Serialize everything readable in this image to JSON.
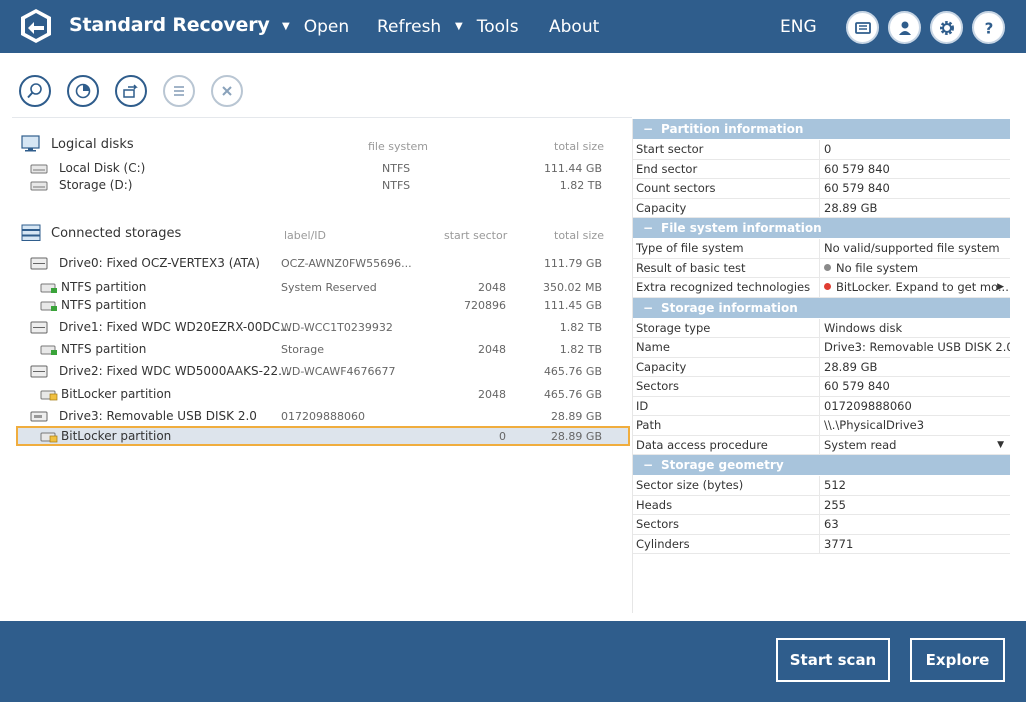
{
  "header": {
    "title": "Standard Recovery",
    "menu": [
      {
        "label": "Open",
        "has_arrow": true
      },
      {
        "label": "Refresh",
        "has_arrow": false
      },
      {
        "label": "Tools",
        "has_arrow": true
      },
      {
        "label": "About",
        "has_arrow": false
      }
    ],
    "language": "ENG",
    "icons": [
      "log-icon",
      "account-icon",
      "settings-gear-icon",
      "help-icon"
    ]
  },
  "toolbar": {
    "icons": [
      "scan-icon",
      "analyze-icon",
      "transfer-icon",
      "list-icon",
      "close-icon"
    ]
  },
  "logical_disks": {
    "title": "Logical disks",
    "col_fs": "file system",
    "col_size": "total size",
    "items": [
      {
        "name": "Local Disk (C:)",
        "fs": "NTFS",
        "size": "111.44 GB"
      },
      {
        "name": "Storage (D:)",
        "fs": "NTFS",
        "size": "1.82 TB"
      }
    ]
  },
  "connected_storages": {
    "title": "Connected storages",
    "col_label": "label/ID",
    "col_start": "start sector",
    "col_size": "total size",
    "items": [
      {
        "name": "Drive0: Fixed OCZ-VERTEX3 (ATA)",
        "label": "OCZ-AWNZ0FW55696...",
        "start": "",
        "size": "111.79 GB",
        "kind": "drive"
      },
      {
        "name": "NTFS partition",
        "label": "System Reserved",
        "start": "2048",
        "size": "350.02 MB",
        "kind": "ntfs"
      },
      {
        "name": "NTFS partition",
        "label": "",
        "start": "720896",
        "size": "111.45 GB",
        "kind": "ntfs"
      },
      {
        "name": "Drive1: Fixed WDC WD20EZRX-00DC...",
        "label": "WD-WCC1T0239932",
        "start": "",
        "size": "1.82 TB",
        "kind": "drive"
      },
      {
        "name": "NTFS partition",
        "label": "Storage",
        "start": "2048",
        "size": "1.82 TB",
        "kind": "ntfs"
      },
      {
        "name": "Drive2: Fixed WDC WD5000AAKS-22...",
        "label": "WD-WCAWF4676677",
        "start": "",
        "size": "465.76 GB",
        "kind": "drive"
      },
      {
        "name": "BitLocker partition",
        "label": "",
        "start": "2048",
        "size": "465.76 GB",
        "kind": "bitlocker"
      },
      {
        "name": "Drive3: Removable USB DISK 2.0",
        "label": "017209888060",
        "start": "",
        "size": "28.89 GB",
        "kind": "usb"
      },
      {
        "name": "BitLocker partition",
        "label": "",
        "start": "0",
        "size": "28.89 GB",
        "kind": "bitlocker",
        "selected": true
      }
    ]
  },
  "properties": [
    {
      "section": "Partition information",
      "rows": [
        {
          "k": "Start sector",
          "v": "0"
        },
        {
          "k": "End sector",
          "v": "60 579 840"
        },
        {
          "k": "Count sectors",
          "v": "60 579 840"
        },
        {
          "k": "Capacity",
          "v": "28.89 GB"
        }
      ]
    },
    {
      "section": "File system information",
      "rows": [
        {
          "k": "Type of file system",
          "v": "No valid/supported file system"
        },
        {
          "k": "Result of basic test",
          "v": "No file system",
          "dot": "#8a8a8a"
        },
        {
          "k": "Extra recognized technologies",
          "v": "BitLocker. Expand to get mo...",
          "dot": "#e03c31",
          "arrow": "▶"
        }
      ]
    },
    {
      "section": "Storage information",
      "rows": [
        {
          "k": "Storage type",
          "v": "Windows disk"
        },
        {
          "k": "Name",
          "v": "Drive3: Removable USB DISK 2.0"
        },
        {
          "k": "Capacity",
          "v": "28.89 GB"
        },
        {
          "k": "Sectors",
          "v": "60 579 840"
        },
        {
          "k": "ID",
          "v": "017209888060"
        },
        {
          "k": "Path",
          "v": "\\\\.\\PhysicalDrive3"
        },
        {
          "k": "Data access procedure",
          "v": "System read",
          "arrow": "▼"
        }
      ]
    },
    {
      "section": "Storage geometry",
      "rows": [
        {
          "k": "Sector size (bytes)",
          "v": "512"
        },
        {
          "k": "Heads",
          "v": "255"
        },
        {
          "k": "Sectors",
          "v": "63"
        },
        {
          "k": "Cylinders",
          "v": "3771"
        }
      ]
    }
  ],
  "footer": {
    "start_scan": "Start scan",
    "explore": "Explore"
  },
  "colors": {
    "brand": "#2f5d8c",
    "section_header": "#a8c4dc",
    "selection_border": "#f0ad3e"
  }
}
